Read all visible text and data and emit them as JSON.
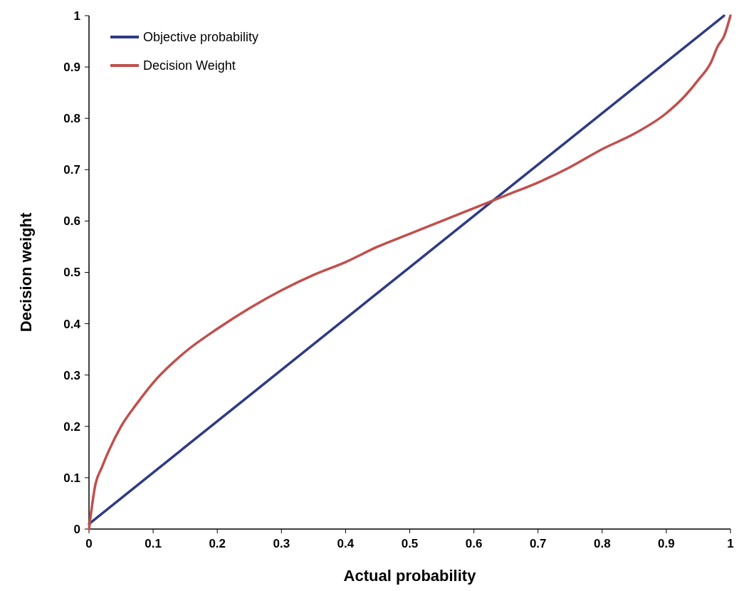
{
  "chart_data": {
    "type": "line",
    "xlabel": "Actual probability",
    "ylabel": "Decision weight",
    "xlim": [
      0,
      1
    ],
    "ylim": [
      0,
      1
    ],
    "xticks": [
      0,
      0.1,
      0.2,
      0.3,
      0.4,
      0.5,
      0.6,
      0.7,
      0.8,
      0.9,
      1
    ],
    "yticks": [
      0,
      0.1,
      0.2,
      0.3,
      0.4,
      0.5,
      0.6,
      0.7,
      0.8,
      0.9,
      1
    ],
    "legend": "top left",
    "grid": false,
    "series": [
      {
        "name": "Objective probability",
        "color": "#2e3a87",
        "x": [
          0,
          0.5,
          0.99
        ],
        "values": [
          0.01,
          0.51,
          1
        ]
      },
      {
        "name": "Decision Weight",
        "color": "#c0504d",
        "x": [
          0,
          0.01,
          0.02,
          0.03,
          0.05,
          0.075,
          0.1,
          0.15,
          0.2,
          0.25,
          0.3,
          0.35,
          0.4,
          0.45,
          0.5,
          0.55,
          0.6,
          0.65,
          0.7,
          0.75,
          0.8,
          0.85,
          0.9,
          0.93,
          0.95,
          0.97,
          0.98,
          0.99,
          1
        ],
        "values": [
          0,
          0.087,
          0.12,
          0.15,
          0.2,
          0.245,
          0.285,
          0.345,
          0.39,
          0.43,
          0.465,
          0.495,
          0.52,
          0.55,
          0.575,
          0.6,
          0.625,
          0.65,
          0.675,
          0.705,
          0.74,
          0.77,
          0.81,
          0.845,
          0.875,
          0.91,
          0.94,
          0.96,
          1
        ]
      }
    ]
  }
}
